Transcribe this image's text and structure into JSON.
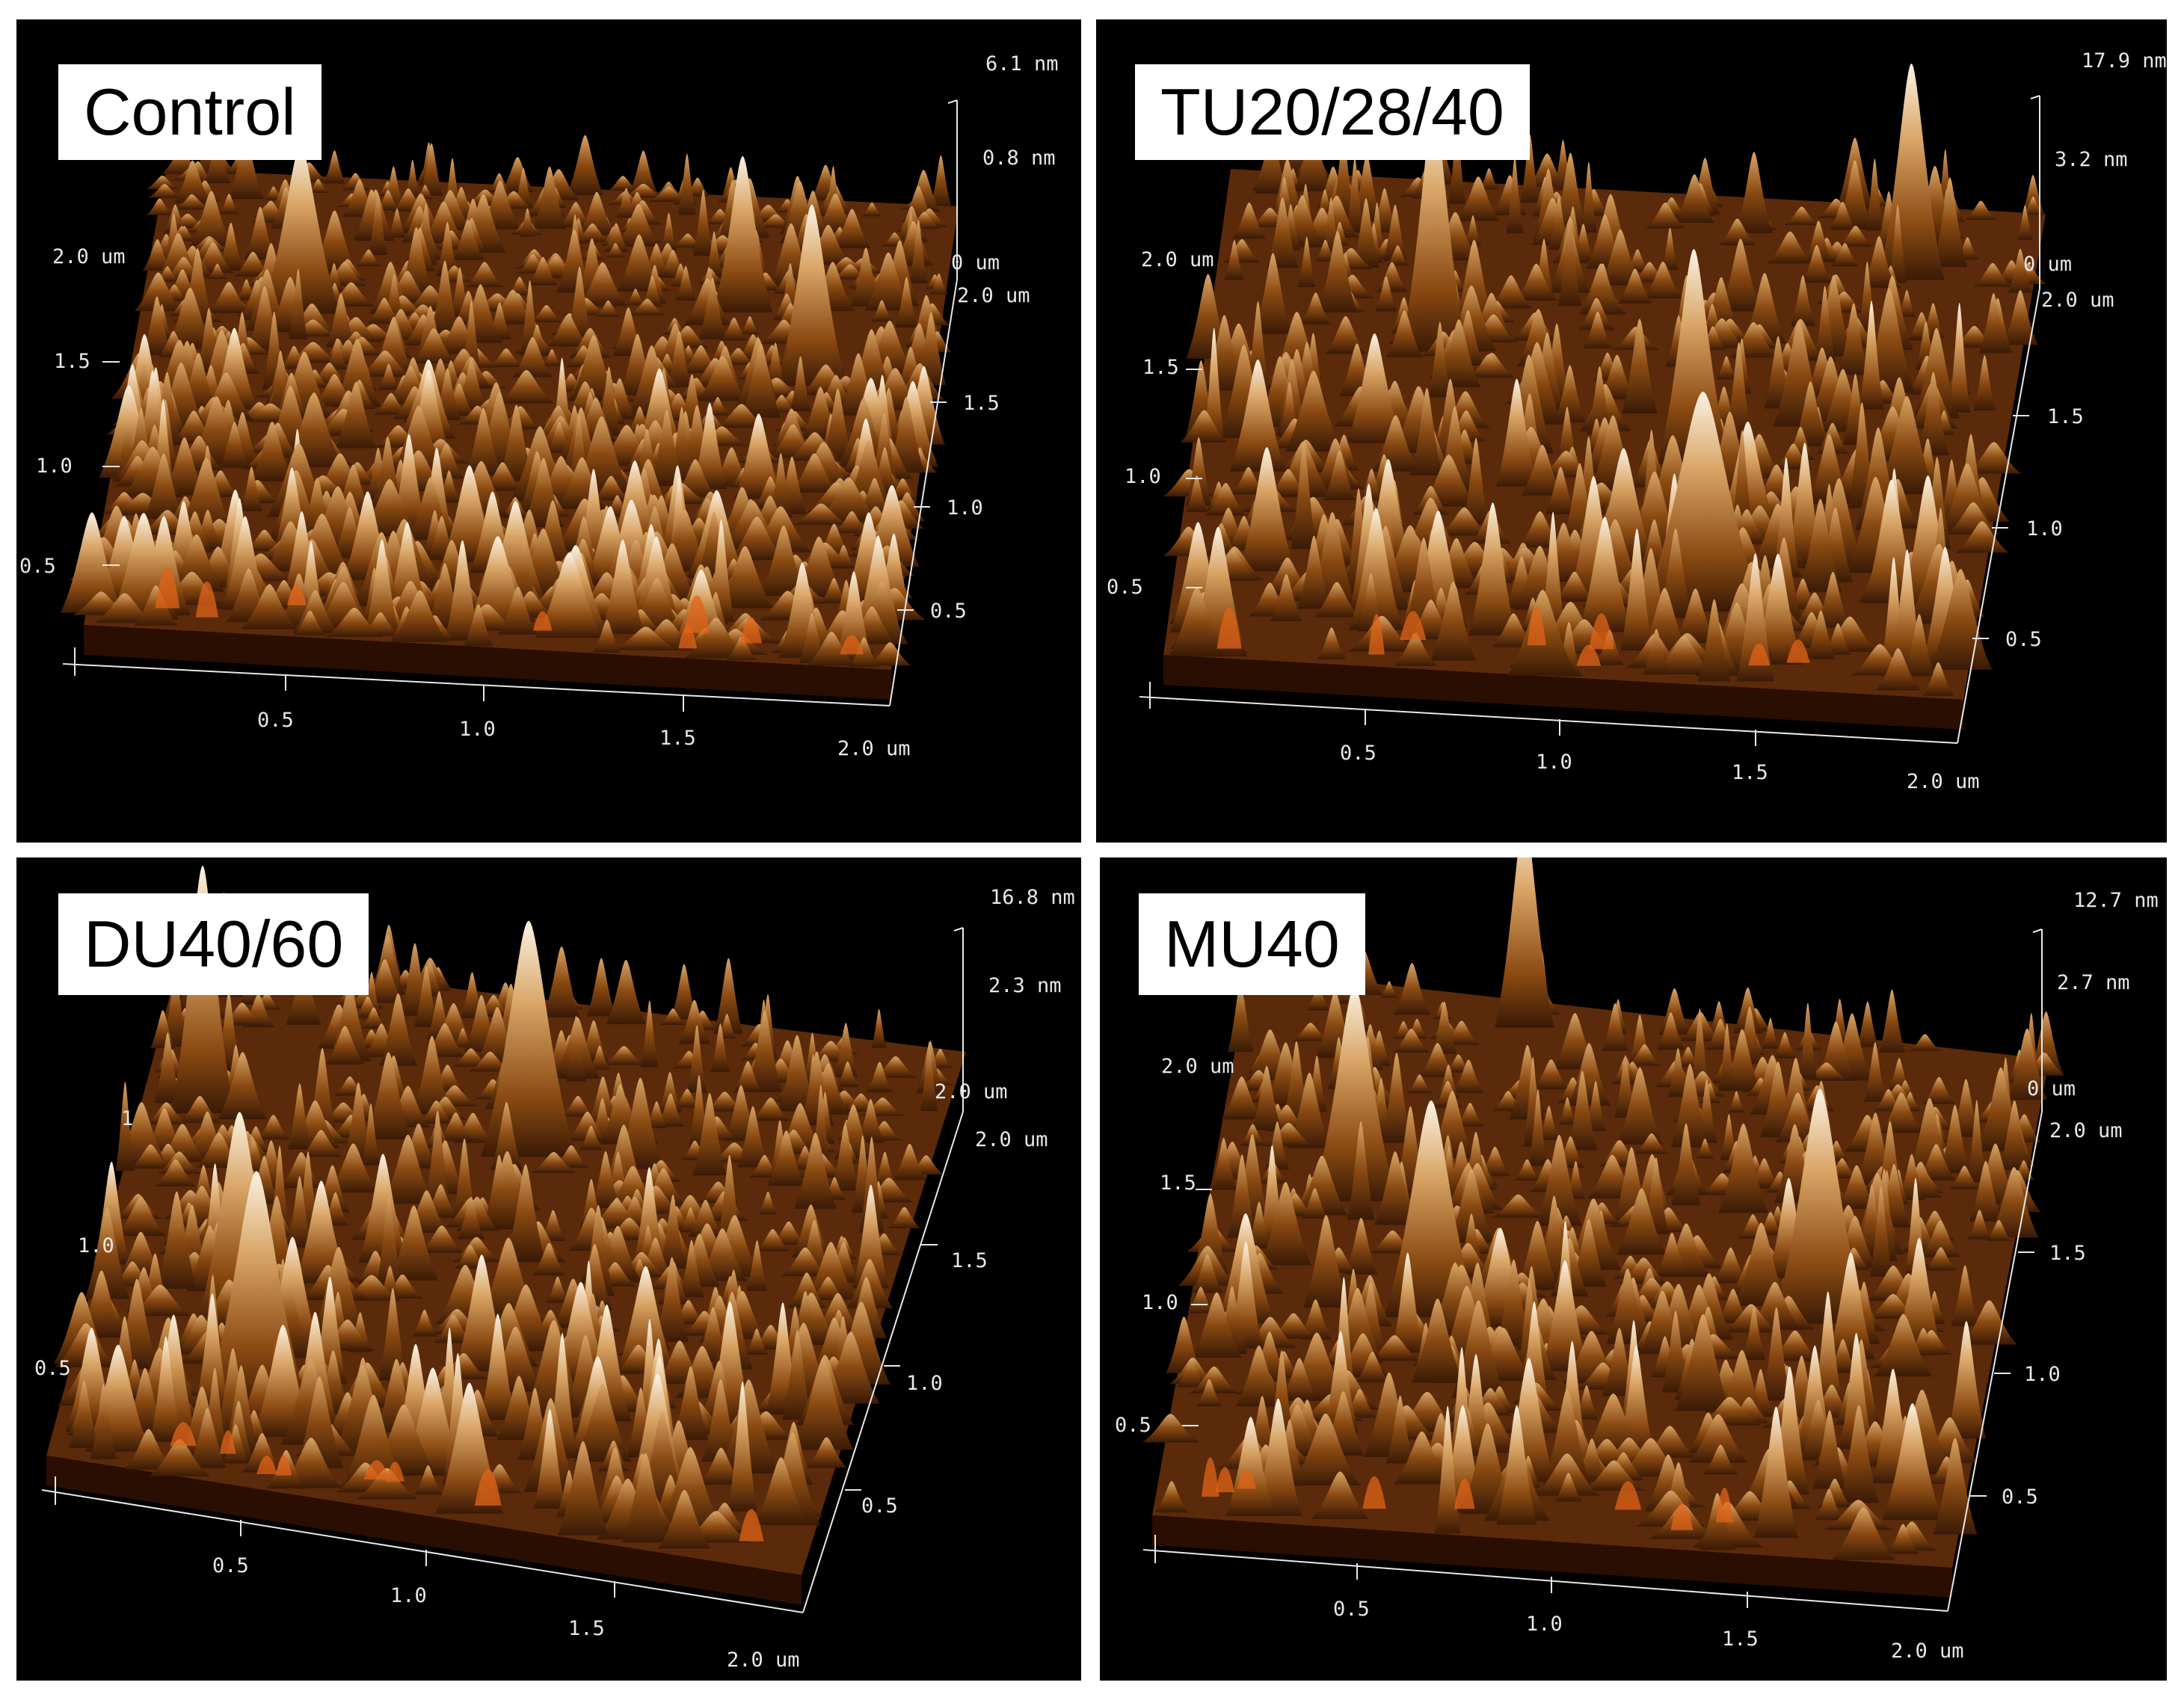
{
  "panels": [
    {
      "label": "Control",
      "z_ticks": [
        "6.1 nm",
        "0.8 nm",
        "0 um"
      ],
      "y_ticks": [
        "2.0 um",
        "1.5",
        "1.0",
        "0.5"
      ],
      "x_ticks": [
        "0.5",
        "1.0",
        "1.5",
        "2.0 um"
      ],
      "right_ticks": [
        "2.0 um",
        "1.5",
        "1.0",
        "0.5"
      ]
    },
    {
      "label": "TU20/28/40",
      "z_ticks": [
        "17.9 nm",
        "3.2 nm",
        "0 um"
      ],
      "y_ticks": [
        "2.0 um",
        "1.5",
        "1.0",
        "0.5"
      ],
      "x_ticks": [
        "0.5",
        "1.0",
        "1.5",
        "2.0 um"
      ],
      "right_ticks": [
        "2.0 um",
        "1.5",
        "1.0",
        "0.5"
      ]
    },
    {
      "label": "DU40/60",
      "z_ticks": [
        "16.8 nm",
        "2.3 nm",
        "2.0 um"
      ],
      "y_ticks": [
        "1",
        "1.0",
        "0.5"
      ],
      "x_ticks": [
        "0.5",
        "1.0",
        "1.5",
        "2.0 um"
      ],
      "right_ticks": [
        "2.0 um",
        "1.5",
        "1.0",
        "0.5"
      ]
    },
    {
      "label": "MU40",
      "z_ticks": [
        "12.7 nm",
        "2.7 nm",
        "0 um"
      ],
      "y_ticks": [
        "2.0 um",
        "1.5",
        "1.0",
        "0.5"
      ],
      "x_ticks": [
        "0.5",
        "1.0",
        "1.5",
        "2.0 um"
      ],
      "right_ticks": [
        "2.0 um",
        "1.5",
        "1.0",
        "0.5"
      ]
    }
  ],
  "colors": {
    "surface_dark": "#3a1a06",
    "surface_mid": "#8a4a12",
    "surface_light": "#d9a566",
    "peak": "#fbf3e4",
    "ember": "#e0641a"
  }
}
